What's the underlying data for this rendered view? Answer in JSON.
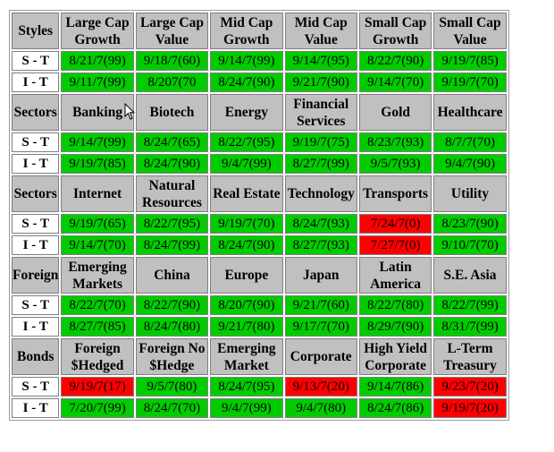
{
  "colors": {
    "header": "#c0c0c0",
    "green": "#00cc00",
    "red": "#ff0000"
  },
  "groups": [
    {
      "title": "Styles",
      "headers": [
        "Large Cap\nGrowth",
        "Large Cap\nValue",
        "Mid Cap\nGrowth",
        "Mid Cap\nValue",
        "Small Cap\nGrowth",
        "Small Cap\nValue"
      ],
      "rows": [
        {
          "label": "S - T",
          "cells": [
            {
              "v": "8/21/7(99)",
              "s": "green"
            },
            {
              "v": "9/18/7(60)",
              "s": "green"
            },
            {
              "v": "9/14/7(99)",
              "s": "green"
            },
            {
              "v": "9/14/7(95)",
              "s": "green"
            },
            {
              "v": "8/22/7(90)",
              "s": "green"
            },
            {
              "v": "9/19/7(85)",
              "s": "green"
            }
          ]
        },
        {
          "label": "I - T",
          "cells": [
            {
              "v": "9/11/7(99)",
              "s": "green"
            },
            {
              "v": "8/207(70",
              "s": "green"
            },
            {
              "v": "8/24/7(90)",
              "s": "green"
            },
            {
              "v": "9/21/7(90)",
              "s": "green"
            },
            {
              "v": "9/14/7(70)",
              "s": "green"
            },
            {
              "v": "9/19/7(70)",
              "s": "green"
            }
          ]
        }
      ]
    },
    {
      "title": "Sectors",
      "headers": [
        "Banking",
        "Biotech",
        "Energy",
        "Financial\nServices",
        "Gold",
        "Healthcare"
      ],
      "rows": [
        {
          "label": "S - T",
          "cells": [
            {
              "v": "9/14/7(99)",
              "s": "green"
            },
            {
              "v": "8/24/7(65)",
              "s": "green"
            },
            {
              "v": "8/22/7(95)",
              "s": "green"
            },
            {
              "v": "9/19/7(75)",
              "s": "green"
            },
            {
              "v": "8/23/7(93)",
              "s": "green"
            },
            {
              "v": "8/7/7(70)",
              "s": "green"
            }
          ]
        },
        {
          "label": "I - T",
          "cells": [
            {
              "v": "9/19/7(85)",
              "s": "green"
            },
            {
              "v": "8/24/7(90)",
              "s": "green"
            },
            {
              "v": "9/4/7(99)",
              "s": "green"
            },
            {
              "v": "8/27/7(99)",
              "s": "green"
            },
            {
              "v": "9/5/7(93)",
              "s": "green"
            },
            {
              "v": "9/4/7(90)",
              "s": "green"
            }
          ]
        }
      ]
    },
    {
      "title": "Sectors",
      "headers": [
        "Internet",
        "Natural\nResources",
        "Real Estate",
        "Technology",
        "Transports",
        "Utility"
      ],
      "rows": [
        {
          "label": "S - T",
          "cells": [
            {
              "v": "9/19/7(65)",
              "s": "green"
            },
            {
              "v": "8/22/7(95)",
              "s": "green"
            },
            {
              "v": "9/19/7(70)",
              "s": "green"
            },
            {
              "v": "8/24/7(93)",
              "s": "green"
            },
            {
              "v": "7/24/7(0)",
              "s": "red"
            },
            {
              "v": "8/23/7(90)",
              "s": "green"
            }
          ]
        },
        {
          "label": "I - T",
          "cells": [
            {
              "v": "9/14/7(70)",
              "s": "green"
            },
            {
              "v": "8/24/7(99)",
              "s": "green"
            },
            {
              "v": "8/24/7(90)",
              "s": "green"
            },
            {
              "v": "8/27/7(93)",
              "s": "green"
            },
            {
              "v": "7/27/7(0)",
              "s": "red"
            },
            {
              "v": "9/10/7(70)",
              "s": "green"
            }
          ]
        }
      ]
    },
    {
      "title": "Foreign",
      "headers": [
        "Emerging\nMarkets",
        "China",
        "Europe",
        "Japan",
        "Latin\nAmerica",
        "S.E. Asia"
      ],
      "rows": [
        {
          "label": "S - T",
          "cells": [
            {
              "v": "8/22/7(70)",
              "s": "green"
            },
            {
              "v": "8/22/7(90)",
              "s": "green"
            },
            {
              "v": "8/20/7(90)",
              "s": "green"
            },
            {
              "v": "9/21/7(60)",
              "s": "green"
            },
            {
              "v": "8/22/7(80)",
              "s": "green"
            },
            {
              "v": "8/22/7(99)",
              "s": "green"
            }
          ]
        },
        {
          "label": "I - T",
          "cells": [
            {
              "v": "8/27/7(85)",
              "s": "green"
            },
            {
              "v": "8/24/7(80)",
              "s": "green"
            },
            {
              "v": "9/21/7(80)",
              "s": "green"
            },
            {
              "v": "9/17/7(70)",
              "s": "green"
            },
            {
              "v": "8/29/7(90)",
              "s": "green"
            },
            {
              "v": "8/31/7(99)",
              "s": "green"
            }
          ]
        }
      ]
    },
    {
      "title": "Bonds",
      "headers": [
        "Foreign\n$Hedged",
        "Foreign No\n$Hedge",
        "Emerging\nMarket",
        "Corporate",
        "High Yield\nCorporate",
        "L-Term\nTreasury"
      ],
      "rows": [
        {
          "label": "S - T",
          "cells": [
            {
              "v": "9/19/7(17)",
              "s": "red"
            },
            {
              "v": "9/5/7(80)",
              "s": "green"
            },
            {
              "v": "8/24/7(95)",
              "s": "green"
            },
            {
              "v": "9/13/7(20)",
              "s": "red"
            },
            {
              "v": "9/14/7(86)",
              "s": "green"
            },
            {
              "v": "9/23/7(20)",
              "s": "red"
            }
          ]
        },
        {
          "label": "I - T",
          "cells": [
            {
              "v": "7/20/7(99)",
              "s": "green"
            },
            {
              "v": "8/24/7(70)",
              "s": "green"
            },
            {
              "v": "9/4/7(99)",
              "s": "green"
            },
            {
              "v": "9/4/7(80)",
              "s": "green"
            },
            {
              "v": "8/24/7(86)",
              "s": "green"
            },
            {
              "v": "9/19/7(20)",
              "s": "red"
            }
          ]
        }
      ]
    }
  ]
}
